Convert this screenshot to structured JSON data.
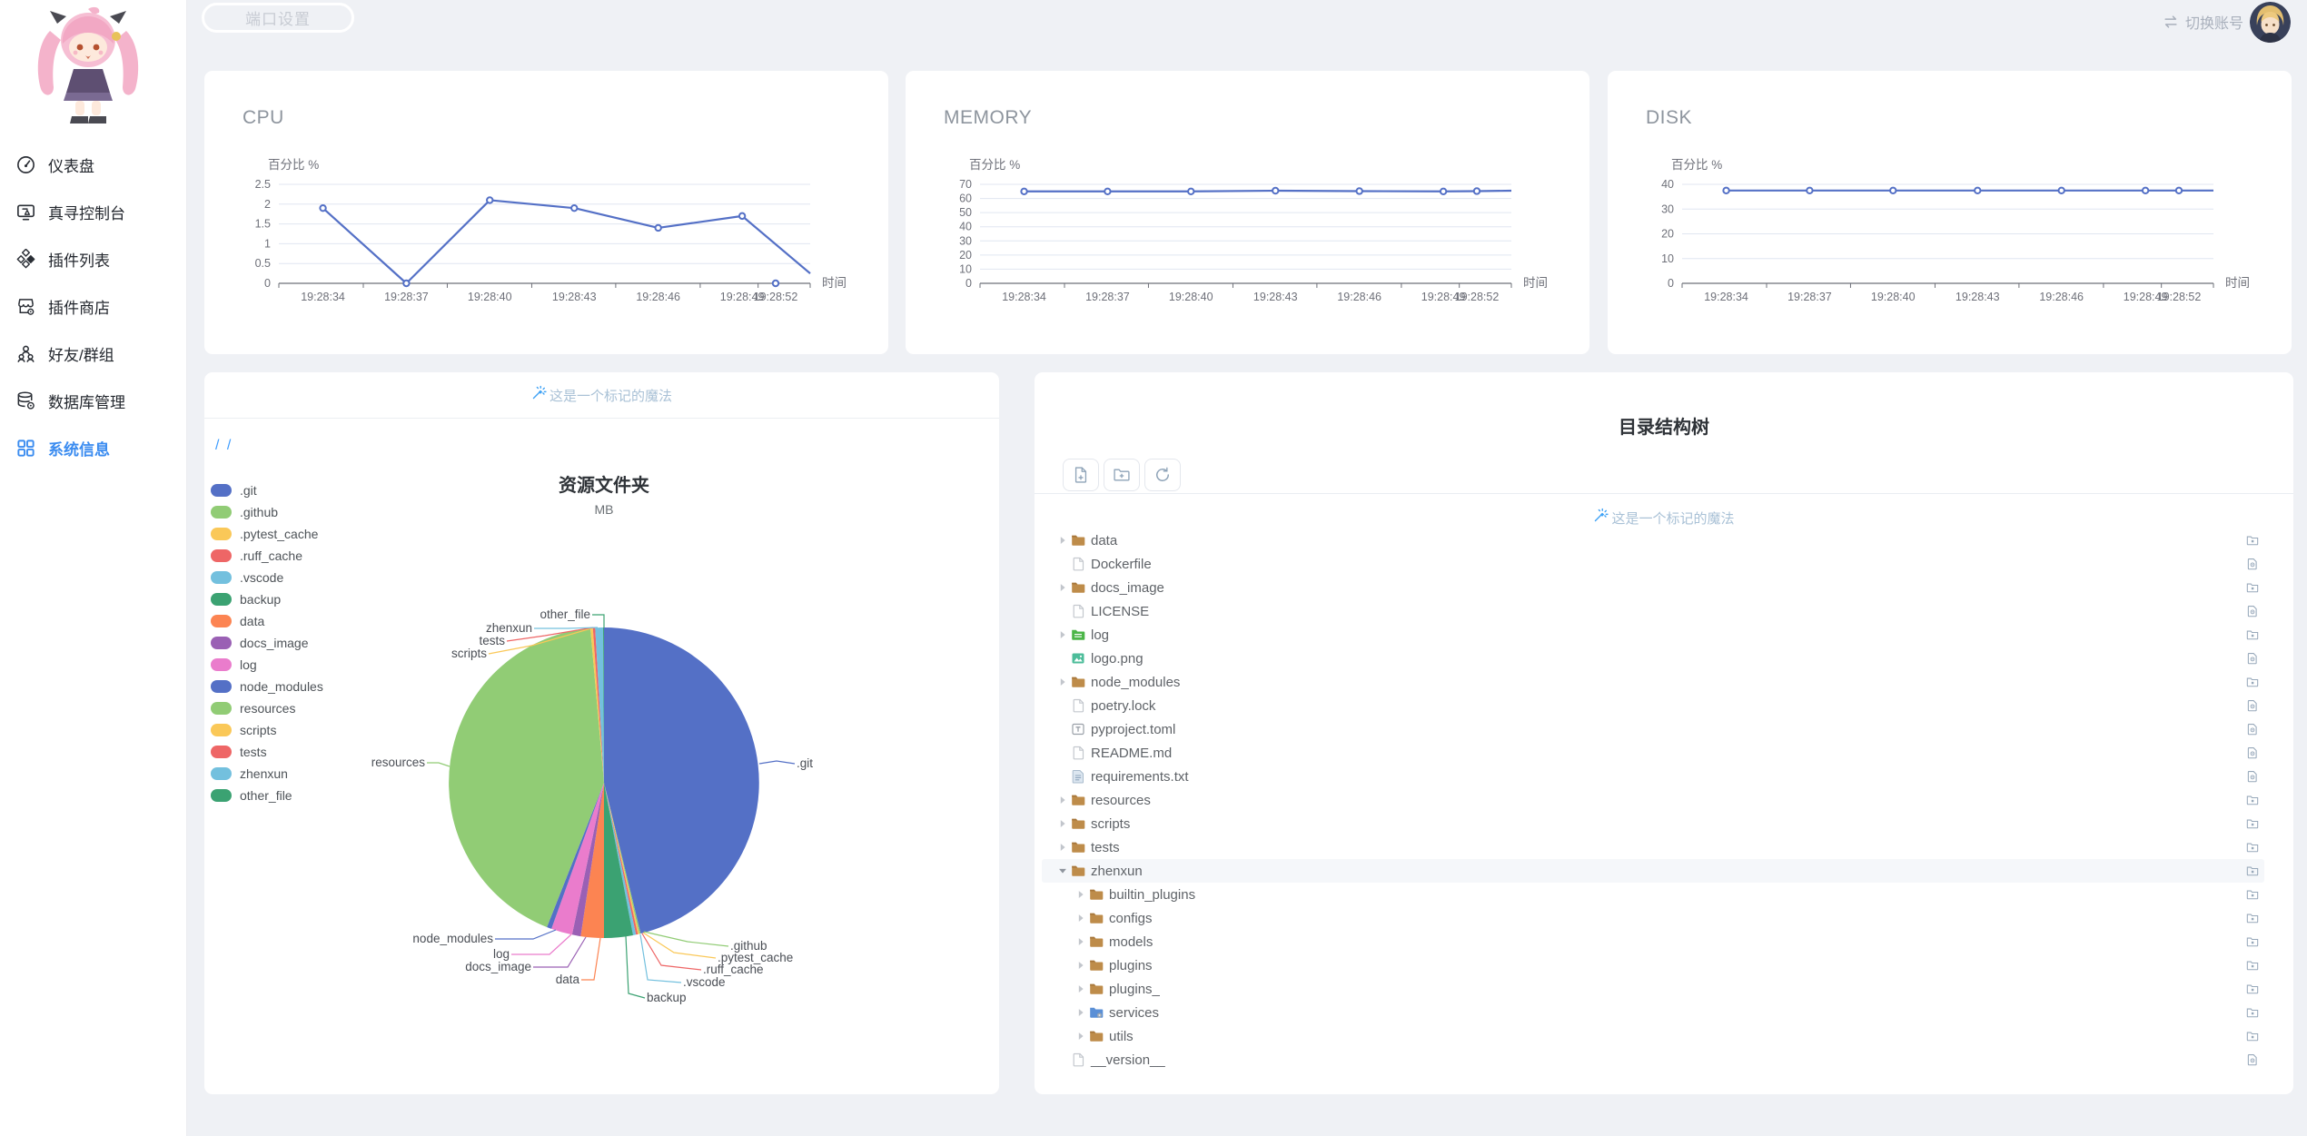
{
  "topbar": {
    "port_button": "端口设置",
    "switch_account": "切换账号"
  },
  "sidebar": {
    "active_color": "#3b8cf0",
    "items": [
      {
        "label": "仪表盘",
        "icon": "gauge-icon",
        "active": false
      },
      {
        "label": "真寻控制台",
        "icon": "console-icon",
        "active": false
      },
      {
        "label": "插件列表",
        "icon": "plugins-icon",
        "active": false
      },
      {
        "label": "插件商店",
        "icon": "store-icon",
        "active": false
      },
      {
        "label": "好友/群组",
        "icon": "friends-icon",
        "active": false
      },
      {
        "label": "数据库管理",
        "icon": "database-icon",
        "active": false
      },
      {
        "label": "系统信息",
        "icon": "grid-icon",
        "active": true
      }
    ]
  },
  "chart_data": [
    {
      "type": "line",
      "title": "CPU",
      "ylabel": "百分比 %",
      "xlabel": "时间",
      "line_color": "#5470C6",
      "ylim": [
        0,
        2.5
      ],
      "y_ticks": [
        0,
        0.5,
        1,
        1.5,
        2,
        2.5
      ],
      "x": [
        "19:28:34",
        "19:28:37",
        "19:28:40",
        "19:28:43",
        "19:28:46",
        "19:28:49",
        "19:28:52"
      ],
      "values": [
        1.9,
        0,
        2.1,
        1.9,
        1.4,
        1.7,
        0
      ],
      "incoming_edge_value": 0.25,
      "line_skips_last_point": true
    },
    {
      "type": "line",
      "title": "MEMORY",
      "ylabel": "百分比 %",
      "xlabel": "时间",
      "line_color": "#5470C6",
      "ylim": [
        0,
        70
      ],
      "y_ticks": [
        0,
        10,
        20,
        30,
        40,
        50,
        60,
        70
      ],
      "x": [
        "19:28:34",
        "19:28:37",
        "19:28:40",
        "19:28:43",
        "19:28:46",
        "19:28:49",
        "19:28:52"
      ],
      "values": [
        65,
        65,
        65,
        65.5,
        65.2,
        65,
        65.2
      ],
      "incoming_edge_value": 65.5,
      "line_skips_last_point": false
    },
    {
      "type": "line",
      "title": "DISK",
      "ylabel": "百分比 %",
      "xlabel": "时间",
      "line_color": "#5470C6",
      "ylim": [
        0,
        40
      ],
      "y_ticks": [
        0,
        10,
        20,
        30,
        40
      ],
      "x": [
        "19:28:34",
        "19:28:37",
        "19:28:40",
        "19:28:43",
        "19:28:46",
        "19:28:49",
        "19:28:52"
      ],
      "values": [
        37.5,
        37.5,
        37.5,
        37.5,
        37.5,
        37.5,
        37.5
      ],
      "incoming_edge_value": 37.5,
      "line_skips_last_point": false
    }
  ],
  "pie_card": {
    "watermark": "这是一个标记的魔法",
    "breadcrumb": "/ /",
    "chart_data": {
      "type": "pie",
      "title": "资源文件夹",
      "subtitle": "MB",
      "legend_position": "left",
      "items": [
        {
          "name": ".git",
          "value": 46.2,
          "color": "#5470C6"
        },
        {
          "name": ".github",
          "value": 0.15,
          "color": "#91CC75"
        },
        {
          "name": ".pytest_cache",
          "value": 0.15,
          "color": "#FAC858"
        },
        {
          "name": ".ruff_cache",
          "value": 0.2,
          "color": "#EE6666"
        },
        {
          "name": ".vscode",
          "value": 0.3,
          "color": "#73C0DE"
        },
        {
          "name": "backup",
          "value": 3.0,
          "color": "#3BA272"
        },
        {
          "name": "data",
          "value": 2.4,
          "color": "#FC8452"
        },
        {
          "name": "docs_image",
          "value": 0.9,
          "color": "#9A60B4"
        },
        {
          "name": "log",
          "value": 2.2,
          "color": "#EA7CCC"
        },
        {
          "name": "node_modules",
          "value": 0.5,
          "color": "#5470C6"
        },
        {
          "name": "resources",
          "value": 42.6,
          "color": "#91CC75"
        },
        {
          "name": "scripts",
          "value": 0.25,
          "color": "#FAC858"
        },
        {
          "name": "tests",
          "value": 0.25,
          "color": "#EE6666"
        },
        {
          "name": "zhenxun",
          "value": 0.81,
          "color": "#73C0DE"
        },
        {
          "name": "other_file",
          "value": 0.09,
          "color": "#3BA272"
        }
      ]
    }
  },
  "tree_card": {
    "title": "目录结构树",
    "watermark": "这是一个标记的魔法",
    "toolbar": [
      {
        "name": "new-file-button",
        "icon": "file-plus-icon"
      },
      {
        "name": "new-folder-button",
        "icon": "folder-plus-icon"
      },
      {
        "name": "refresh-button",
        "icon": "refresh-icon"
      }
    ],
    "rows": [
      {
        "name": "data",
        "icon": "folder",
        "level": 0,
        "arrow": "right",
        "selected": false,
        "action": "folder-download-icon"
      },
      {
        "name": "Dockerfile",
        "icon": "file",
        "level": 0,
        "arrow": null,
        "selected": false,
        "action": "file-download-icon"
      },
      {
        "name": "docs_image",
        "icon": "folder",
        "level": 0,
        "arrow": "right",
        "selected": false,
        "action": "folder-download-icon"
      },
      {
        "name": "LICENSE",
        "icon": "file",
        "level": 0,
        "arrow": null,
        "selected": false,
        "action": "file-download-icon"
      },
      {
        "name": "log",
        "icon": "log-folder",
        "level": 0,
        "arrow": "right",
        "selected": false,
        "action": "folder-download-icon"
      },
      {
        "name": "logo.png",
        "icon": "image",
        "level": 0,
        "arrow": null,
        "selected": false,
        "action": "file-download-icon"
      },
      {
        "name": "node_modules",
        "icon": "folder",
        "level": 0,
        "arrow": "right",
        "selected": false,
        "action": "folder-download-icon"
      },
      {
        "name": "poetry.lock",
        "icon": "file",
        "level": 0,
        "arrow": null,
        "selected": false,
        "action": "file-download-icon"
      },
      {
        "name": "pyproject.toml",
        "icon": "toml",
        "level": 0,
        "arrow": null,
        "selected": false,
        "action": "file-download-icon"
      },
      {
        "name": "README.md",
        "icon": "file",
        "level": 0,
        "arrow": null,
        "selected": false,
        "action": "file-download-icon"
      },
      {
        "name": "requirements.txt",
        "icon": "text",
        "level": 0,
        "arrow": null,
        "selected": false,
        "action": "file-download-icon"
      },
      {
        "name": "resources",
        "icon": "folder",
        "level": 0,
        "arrow": "right",
        "selected": false,
        "action": "folder-download-icon"
      },
      {
        "name": "scripts",
        "icon": "folder",
        "level": 0,
        "arrow": "right",
        "selected": false,
        "action": "folder-download-icon"
      },
      {
        "name": "tests",
        "icon": "folder",
        "level": 0,
        "arrow": "right",
        "selected": false,
        "action": "folder-download-icon"
      },
      {
        "name": "zhenxun",
        "icon": "folder",
        "level": 0,
        "arrow": "down",
        "selected": true,
        "action": "folder-download-icon"
      },
      {
        "name": "builtin_plugins",
        "icon": "folder",
        "level": 1,
        "arrow": "right",
        "selected": false,
        "action": "folder-download-icon"
      },
      {
        "name": "configs",
        "icon": "folder",
        "level": 1,
        "arrow": "right",
        "selected": false,
        "action": "folder-download-icon"
      },
      {
        "name": "models",
        "icon": "folder",
        "level": 1,
        "arrow": "right",
        "selected": false,
        "action": "folder-download-icon"
      },
      {
        "name": "plugins",
        "icon": "folder",
        "level": 1,
        "arrow": "right",
        "selected": false,
        "action": "folder-download-icon"
      },
      {
        "name": "plugins_",
        "icon": "folder",
        "level": 1,
        "arrow": "right",
        "selected": false,
        "action": "folder-download-icon"
      },
      {
        "name": "services",
        "icon": "services-folder",
        "level": 1,
        "arrow": "right",
        "selected": false,
        "action": "folder-download-icon"
      },
      {
        "name": "utils",
        "icon": "folder",
        "level": 1,
        "arrow": "right",
        "selected": false,
        "action": "folder-download-icon"
      },
      {
        "name": "__version__",
        "icon": "file",
        "level": 0,
        "arrow": null,
        "selected": false,
        "action": "file-download-icon"
      }
    ]
  }
}
